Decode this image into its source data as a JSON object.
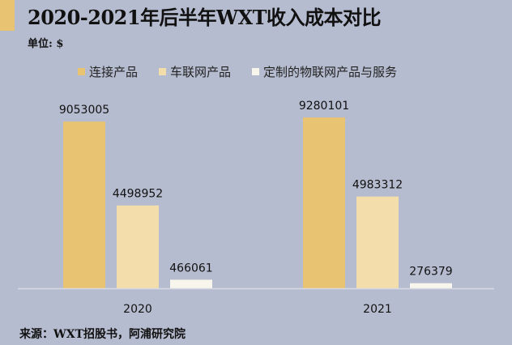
{
  "chart_data": {
    "type": "bar",
    "title": "2020-2021年后半年WXT收入成本对比",
    "subtitle": "单位: $",
    "source": "来源：WXT招股书，阿浦研究院",
    "categories": [
      "2020",
      "2021"
    ],
    "series": [
      {
        "name": "连接产品",
        "values": [
          9053005,
          9280101
        ],
        "color": "#e8c372"
      },
      {
        "name": "车联网产品",
        "values": [
          4498952,
          4983312
        ],
        "color": "#f3deab"
      },
      {
        "name": "定制的物联网产品与服务",
        "values": [
          466061,
          276379
        ],
        "color": "#f8f5ec"
      }
    ],
    "ylim": [
      0,
      9280101
    ],
    "grid": false,
    "legend_position": "top",
    "data_labels": true,
    "background": "#b6bccf",
    "accent": "#e8c372"
  }
}
